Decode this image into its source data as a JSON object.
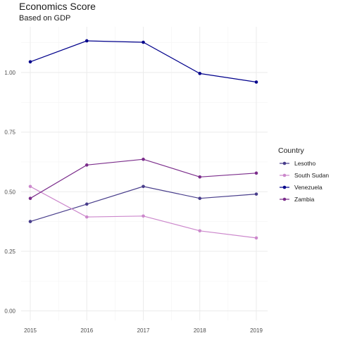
{
  "chart_data": {
    "type": "line",
    "title": "Economics Score",
    "subtitle": "Based on GDP",
    "xlabel": "",
    "ylabel": "",
    "x": [
      2015,
      2016,
      2017,
      2018,
      2019
    ],
    "xlim": [
      2015,
      2019
    ],
    "ylim": [
      0,
      1.18
    ],
    "yticks": [
      0.0,
      0.25,
      0.5,
      0.75,
      1.0
    ],
    "ytick_labels": [
      "0.00",
      "0.25",
      "0.50",
      "0.75",
      "1.00"
    ],
    "xtick_labels": [
      "2015",
      "2016",
      "2017",
      "2018",
      "2019"
    ],
    "grid": true,
    "legend": {
      "title": "Country",
      "placement": "right"
    },
    "series": [
      {
        "name": "Lesotho",
        "color": "#483d8b",
        "values": [
          0.375,
          0.448,
          0.522,
          0.472,
          0.49
        ]
      },
      {
        "name": "South Sudan",
        "color": "#cc88cc",
        "values": [
          0.522,
          0.394,
          0.398,
          0.336,
          0.306
        ]
      },
      {
        "name": "Venezuela",
        "color": "#00008b",
        "values": [
          1.045,
          1.133,
          1.127,
          0.996,
          0.96
        ]
      },
      {
        "name": "Zambia",
        "color": "#7b2d8b",
        "values": [
          0.472,
          0.612,
          0.636,
          0.562,
          0.578
        ]
      }
    ]
  }
}
